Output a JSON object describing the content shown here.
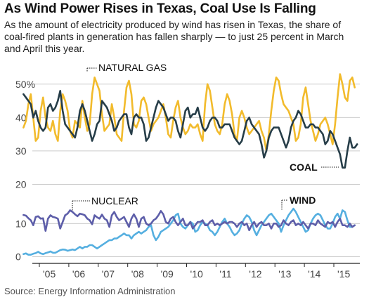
{
  "header": {
    "title": "As Wind Power Rises in Texas, Coal Use Is Falling",
    "subtitle": "As the amount of electricity produced by wind has risen in Texas, the share of coal-fired plants in generation has fallen sharply — to just 25 percent in March and April this year."
  },
  "source": "Source: Energy Information Administration",
  "colors": {
    "natural_gas": "#f2bb2c",
    "coal": "#263d48",
    "nuclear": "#5d5ea9",
    "wind": "#55afe0",
    "grid": "#cccccc",
    "axis": "#222222"
  },
  "chart_data": [
    {
      "type": "line",
      "x_start": 2004.46,
      "x_step_months": 1,
      "ylim": [
        18,
        55
      ],
      "yticks": [
        50,
        40,
        30,
        20
      ],
      "ytick_labels": [
        "50%",
        "40",
        "30",
        "20"
      ],
      "series": [
        {
          "name": "NATURAL GAS",
          "values": [
            37,
            39,
            44,
            47,
            40,
            33,
            34,
            42,
            46,
            40,
            37,
            36,
            39,
            35,
            33,
            42,
            47,
            45,
            42,
            36,
            34,
            39,
            38,
            37,
            45,
            40,
            36,
            38,
            47,
            52,
            50,
            48,
            41,
            36,
            37,
            38,
            44,
            40,
            35,
            34,
            33,
            42,
            49,
            51,
            47,
            38,
            37,
            39,
            45,
            46,
            44,
            40,
            36,
            38,
            39,
            40,
            42,
            44,
            40,
            35,
            34,
            39,
            43,
            45,
            40,
            37,
            35,
            36,
            38,
            37,
            37,
            38,
            35,
            33,
            44,
            50,
            48,
            43,
            38,
            36,
            35,
            38,
            44,
            47,
            45,
            41,
            35,
            33,
            40,
            42,
            40,
            37,
            35,
            36,
            37,
            38,
            39,
            36,
            34,
            30,
            35,
            42,
            48,
            52,
            51,
            47,
            44,
            43,
            42,
            40,
            38,
            33,
            34,
            38,
            46,
            49,
            44,
            39,
            36,
            33,
            35,
            38,
            39,
            40,
            38,
            35,
            32,
            38,
            46,
            53,
            50,
            46,
            45,
            51,
            52,
            49
          ]
        },
        {
          "name": "COAL",
          "values": [
            47,
            46,
            45,
            44,
            40,
            42,
            39,
            37,
            36,
            37,
            43,
            44,
            42,
            43,
            45,
            48,
            42,
            38,
            37,
            36,
            35,
            34,
            37,
            42,
            44,
            42,
            39,
            36,
            33,
            35,
            38,
            39,
            45,
            44,
            43,
            41,
            39,
            36,
            37,
            39,
            40,
            41,
            41,
            37,
            35,
            40,
            41,
            40,
            40,
            38,
            33,
            34,
            37,
            40,
            43,
            45,
            44,
            43,
            41,
            39,
            40,
            40,
            39,
            36,
            34,
            38,
            42,
            43,
            40,
            41,
            41,
            43,
            40,
            37,
            36,
            37,
            39,
            40,
            40,
            39,
            37,
            37,
            38,
            38,
            38,
            36,
            34,
            33,
            32,
            33,
            36,
            39,
            40,
            38,
            37,
            36,
            35,
            32,
            28,
            30,
            34,
            36,
            37,
            37,
            37,
            35,
            33,
            31,
            33,
            37,
            39,
            40,
            42,
            41,
            39,
            37,
            37,
            38,
            38,
            37,
            37,
            36,
            35,
            32,
            33,
            36,
            35,
            33,
            31,
            29,
            25,
            25,
            30,
            34,
            31,
            31,
            32
          ]
        }
      ]
    },
    {
      "type": "line",
      "ylim": [
        -2,
        16
      ],
      "yticks": [
        10,
        0
      ],
      "ytick_labels": [
        "10",
        "0"
      ],
      "series": [
        {
          "name": "NUCLEAR",
          "values": [
            12.6,
            12.4,
            11.6,
            11.0,
            9.5,
            12.0,
            12.2,
            11.5,
            11.6,
            7.8,
            11.5,
            12.5,
            12.0,
            11.8,
            11.5,
            8.5,
            10.5,
            12.5,
            13.0,
            14.0,
            13.5,
            12.8,
            12.2,
            13.0,
            12.8,
            12.5,
            11.5,
            11.0,
            9.8,
            12.5,
            11.9,
            11.5,
            12.7,
            11.5,
            11.0,
            9.0,
            12.5,
            13.5,
            12.0,
            11.0,
            11.5,
            12.0,
            10.5,
            9.0,
            11.5,
            12.8,
            11.5,
            9.0,
            11.5,
            12.0,
            10.0,
            9.5,
            10.0,
            11.0,
            11.5,
            12.5,
            13.8,
            12.8,
            10.5,
            10.0,
            11.5,
            12.0,
            10.5,
            9.5,
            10.5,
            11.5,
            9.5,
            9.5,
            10.5,
            8.5,
            9.5,
            10.5,
            10.5,
            11.0,
            9.5,
            9.5,
            10.5,
            11.0,
            9.5,
            10.0,
            9.5,
            10.0,
            10.5,
            10.0,
            10.5,
            10.5,
            10.0,
            9.0,
            10.0,
            10.5,
            9.5,
            10.0,
            8.0,
            9.5,
            10.5,
            9.0,
            10.0,
            10.5,
            9.5,
            9.5,
            10.0,
            8.5,
            10.0,
            10.0,
            9.0,
            9.5,
            11.0,
            10.0,
            9.5,
            10.5,
            11.0,
            9.5,
            10.0,
            9.5,
            10.5,
            9.5,
            8.5,
            10.0,
            10.0,
            9.5,
            11.0,
            10.0,
            9.5,
            9.0,
            10.5,
            10.0,
            10.5,
            9.0,
            10.5,
            11.5,
            9.5,
            9.5,
            9.0,
            10.0,
            9.0,
            9.5
          ]
        },
        {
          "name": "WIND",
          "values": [
            0.8,
            1.0,
            0.6,
            0.6,
            0.9,
            1.1,
            1.5,
            1.0,
            0.8,
            1.1,
            1.3,
            1.6,
            1.2,
            1.2,
            1.6,
            2.0,
            2.2,
            2.1,
            1.8,
            2.0,
            2.2,
            2.0,
            2.5,
            3.0,
            2.5,
            3.0,
            3.0,
            3.5,
            3.5,
            3.0,
            2.5,
            3.0,
            3.5,
            4.0,
            4.5,
            5.0,
            5.0,
            5.5,
            5.5,
            6.0,
            6.5,
            7.0,
            6.5,
            6.5,
            5.5,
            6.5,
            7.0,
            7.5,
            7.0,
            7.5,
            8.0,
            9.0,
            9.5,
            6.5,
            5.0,
            6.0,
            7.5,
            8.0,
            8.5,
            9.0,
            10.0,
            11.0,
            12.5,
            13.0,
            10.0,
            9.0,
            8.5,
            9.5,
            10.5,
            10.0,
            7.5,
            8.0,
            9.5,
            10.5,
            10.0,
            9.5,
            8.0,
            7.5,
            6.5,
            7.5,
            9.0,
            10.5,
            11.5,
            10.0,
            9.0,
            7.5,
            6.5,
            7.0,
            8.0,
            10.0,
            11.5,
            12.5,
            12.0,
            10.5,
            8.0,
            6.5,
            8.0,
            9.5,
            10.5,
            11.5,
            12.5,
            13.0,
            12.0,
            11.0,
            10.0,
            7.5,
            9.5,
            11.0,
            12.5,
            13.5,
            14.5,
            13.5,
            12.0,
            10.5,
            9.0,
            7.5,
            8.0,
            10.0,
            11.5,
            12.5,
            13.0,
            12.5,
            11.0,
            9.5,
            8.5,
            8.5,
            10.0,
            12.0,
            13.0,
            11.5,
            14.0,
            13.5,
            11.0,
            9.0,
            9.0,
            9.5
          ]
        }
      ]
    }
  ],
  "x_axis": {
    "ticks": [
      "'05",
      "'06",
      "'07",
      "'08",
      "'09",
      "'10",
      "'11",
      "'12",
      "'13",
      "'14",
      "'15"
    ]
  },
  "labels": {
    "natural_gas": "NATURAL GAS",
    "coal": "COAL",
    "nuclear": "NUCLEAR",
    "wind": "WIND"
  }
}
